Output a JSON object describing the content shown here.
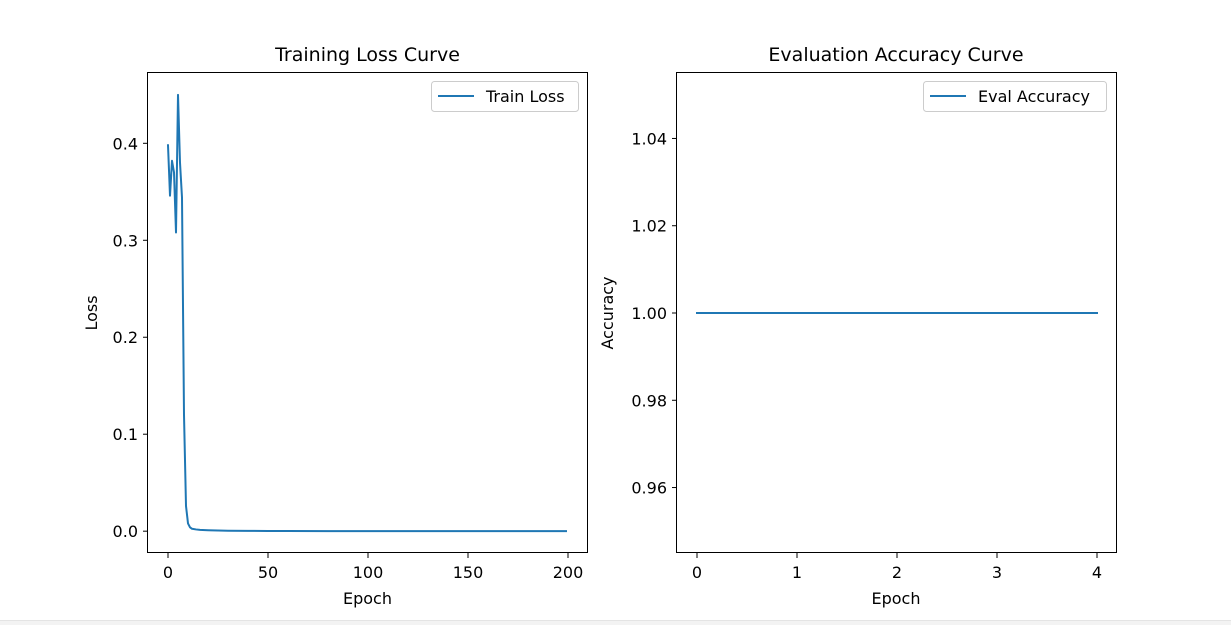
{
  "chart_data": [
    {
      "type": "line",
      "title": "Training Loss Curve",
      "xlabel": "Epoch",
      "ylabel": "Loss",
      "xlim": [
        -10,
        210
      ],
      "ylim": [
        -0.0225,
        0.4725
      ],
      "xticks": [
        0,
        50,
        100,
        150,
        200
      ],
      "xtick_labels": [
        "0",
        "50",
        "100",
        "150",
        "200"
      ],
      "yticks": [
        0.0,
        0.1,
        0.2,
        0.3,
        0.4
      ],
      "ytick_labels": [
        "0.0",
        "0.1",
        "0.2",
        "0.3",
        "0.4"
      ],
      "grid": false,
      "legend": "top-right",
      "series": [
        {
          "name": "Train Loss",
          "color": "#1f77b4",
          "x": [
            0,
            1,
            2,
            3,
            4,
            5,
            6,
            7,
            8,
            9,
            10,
            11,
            12,
            14,
            16,
            20,
            25,
            30,
            40,
            50,
            60,
            80,
            100,
            120,
            150,
            180,
            199
          ],
          "y": [
            0.398,
            0.346,
            0.382,
            0.37,
            0.308,
            0.45,
            0.38,
            0.344,
            0.12,
            0.026,
            0.008,
            0.004,
            0.0025,
            0.0018,
            0.0014,
            0.001,
            0.0007,
            0.0005,
            0.0003,
            0.0002,
            0.00015,
            0.0001,
            0.0001,
            0.0001,
            0.0001,
            0.0001,
            0.0001
          ]
        }
      ]
    },
    {
      "type": "line",
      "title": "Evaluation Accuracy Curve",
      "xlabel": "Epoch",
      "ylabel": "Accuracy",
      "xlim": [
        -0.2,
        4.2
      ],
      "ylim": [
        0.945,
        1.055
      ],
      "xticks": [
        0,
        1,
        2,
        3,
        4
      ],
      "xtick_labels": [
        "0",
        "1",
        "2",
        "3",
        "4"
      ],
      "yticks": [
        0.96,
        0.98,
        1.0,
        1.02,
        1.04
      ],
      "ytick_labels": [
        "0.96",
        "0.98",
        "1.00",
        "1.02",
        "1.04"
      ],
      "grid": false,
      "legend": "top-right",
      "series": [
        {
          "name": "Eval Accuracy",
          "color": "#1f77b4",
          "x": [
            0,
            1,
            2,
            3,
            4
          ],
          "y": [
            1.0,
            1.0,
            1.0,
            1.0,
            1.0
          ]
        }
      ]
    }
  ]
}
